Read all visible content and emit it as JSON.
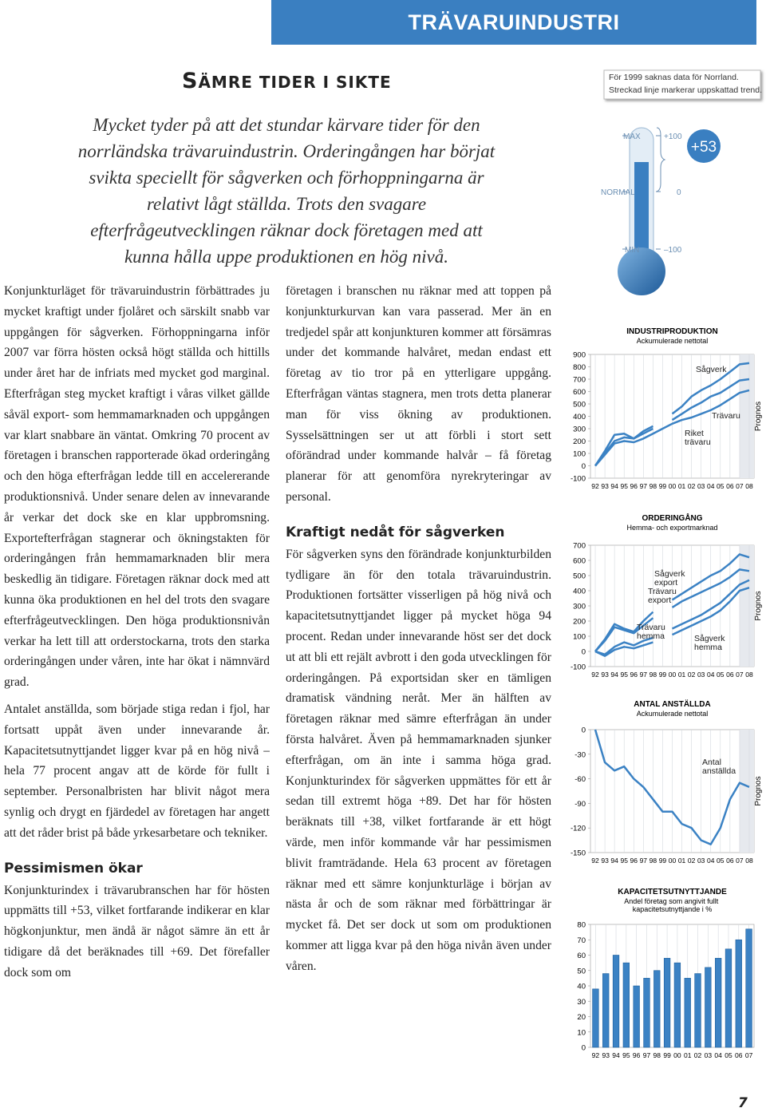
{
  "header": {
    "banner": "TRÄVARUINDUSTRI"
  },
  "article": {
    "title": "SÄMRE TIDER I SIKTE",
    "lead": "Mycket tyder på att det stundar kärvare tider för den norrländska trävaruindustrin. Orderingången har börjat svikta speciellt för sågverken och förhoppningarna är relativt lågt ställda. Trots den svagare efterfrågeutvecklingen räknar dock företagen med att kunna hålla uppe produktionen en hög nivå.",
    "left": [
      {
        "text": "Konjunkturläget för trävaruindustrin förbättrades ju mycket kraftigt under fjolåret och särskilt snabb var uppgången för sågverken. Förhoppningarna inför 2007 var förra hösten också högt ställda och hittills under året har de infriats med mycket god marginal. Efterfrågan steg mycket kraftigt i våras vilket gällde såväl export- som hemmamarknaden och uppgången var klart snabbare än väntat. Omkring 70 procent av företagen i branschen rapporterade ökad orderingång och den höga efterfrågan ledde till en accelererande produktionsnivå. Under senare delen av innevarande år verkar det dock ske en klar uppbromsning. Exportefterfrågan stagnerar och ökningstakten för orderingången från hemmamarknaden blir mera beskedlig än tidigare. Företagen räknar dock med att kunna öka produktionen en hel del trots den svagare efterfrågeutvecklingen. Den höga produktionsnivån verkar ha lett till att orderstockarna, trots den starka orderingången under våren, inte har ökat i nämnvärd grad."
      },
      {
        "text": "Antalet anställda, som började stiga redan i fjol, har fortsatt uppåt även under innevarande år. Kapacitetsutnyttjandet ligger kvar på en hög nivå – hela 77 procent angav att de körde för fullt i september. Personalbristen har blivit något mera synlig och drygt en fjärdedel av företagen har angett att det råder brist på både yrkesarbetare och tekniker."
      },
      {
        "heading": "Pessimismen ökar"
      },
      {
        "text": "Konjunkturindex i trävarubranschen har för hösten uppmätts till +53, vilket fortfarande indikerar en klar högkonjunktur, men ändå är något sämre än ett år tidigare då det beräknades till +69. Det förefaller dock som om"
      }
    ],
    "middle": [
      {
        "text": "företagen i branschen nu räknar med att toppen på konjunkturkurvan kan vara passerad. Mer än en tredjedel spår att konjunkturen kommer att försämras under det kommande halvåret, medan endast ett företag av tio tror på en ytterligare uppgång. Efterfrågan väntas stagnera, men trots detta planerar man för viss ökning av produktionen. Sysselsättningen ser ut att förbli i stort sett oförändrad under kommande halvår – få företag planerar för att genomföra nyrekryteringar av personal."
      },
      {
        "heading": "Kraftigt nedåt för sågverken"
      },
      {
        "text": "För sågverken syns den förändrade konjunkturbilden tydligare än för den totala trävaruindustrin. Produktionen fortsätter visserligen på hög nivå och kapacitetsutnyttjandet ligger på mycket höga 94 procent. Redan under innevarande höst ser det dock ut att bli ett rejält avbrott i den goda utvecklingen för orderingången. På exportsidan sker en tämligen dramatisk vändning neråt. Mer än hälften av företagen räknar med sämre efterfrågan än under första halvåret. Även på hemmamarknaden sjunker efterfrågan, om än inte i samma höga grad. Konjunkturindex för sågverken uppmättes för ett år sedan till extremt höga +89. Det har för hösten beräknats till +38, vilket fortfarande är ett högt värde, men inför kommande vår har pessimismen blivit framträdande. Hela 63 procent av företagen räknar med ett sämre konjunkturläge i början av nästa år och de som räknar med förbättringar är mycket få. Det ser dock ut som om produktionen kommer att ligga kvar på den höga nivån även under våren."
      }
    ]
  },
  "gauge": {
    "note": [
      "För 1999 saknas data för Norrland.",
      "Streckad linje markerar uppskattad trend."
    ],
    "max": "MAX",
    "normal": "NORMAL",
    "min": "MIN",
    "top": "+100",
    "zero": "0",
    "bottom": "–100",
    "index": "+53"
  },
  "chart_data": [
    {
      "type": "line",
      "title": "INDUSTRIPRODUKTION",
      "subtitle": "Ackumulerade nettotal",
      "categories": [
        "92",
        "93",
        "94",
        "95",
        "96",
        "97",
        "98",
        "99",
        "00",
        "01",
        "02",
        "03",
        "04",
        "05",
        "06",
        "07",
        "08"
      ],
      "ylim": [
        -100,
        900
      ],
      "yticks": [
        -100,
        0,
        100,
        200,
        300,
        400,
        500,
        600,
        700,
        800,
        900
      ],
      "annotation": "Prognos",
      "series": [
        {
          "name": "Sågverk",
          "color": "#3b82c4",
          "values": [
            0,
            120,
            250,
            260,
            220,
            280,
            320,
            null,
            420,
            480,
            560,
            610,
            650,
            700,
            760,
            820,
            830
          ]
        },
        {
          "name": "Trävaru",
          "color": "#3b82c4",
          "values": [
            0,
            100,
            200,
            230,
            220,
            260,
            300,
            null,
            370,
            420,
            470,
            510,
            560,
            590,
            640,
            690,
            700
          ]
        },
        {
          "name": "Riket trävaru",
          "color": "#3b82c4",
          "values": [
            0,
            90,
            180,
            200,
            190,
            220,
            260,
            300,
            340,
            370,
            390,
            420,
            450,
            490,
            540,
            590,
            610
          ]
        }
      ]
    },
    {
      "type": "line",
      "title": "ORDERINGÅNG",
      "subtitle": "Hemma- och exportmarknad",
      "categories": [
        "92",
        "93",
        "94",
        "95",
        "96",
        "97",
        "98",
        "99",
        "00",
        "01",
        "02",
        "03",
        "04",
        "05",
        "06",
        "07",
        "08"
      ],
      "ylim": [
        -100,
        700
      ],
      "yticks": [
        -100,
        0,
        100,
        200,
        300,
        400,
        500,
        600,
        700
      ],
      "annotation": "Prognos",
      "series": [
        {
          "name": "Sågverk export",
          "color": "#3b82c4",
          "values": [
            0,
            80,
            180,
            150,
            130,
            200,
            260,
            null,
            340,
            380,
            420,
            460,
            500,
            530,
            580,
            640,
            620
          ]
        },
        {
          "name": "Trävaru export",
          "color": "#3b82c4",
          "values": [
            0,
            70,
            160,
            140,
            120,
            170,
            220,
            null,
            290,
            330,
            360,
            390,
            420,
            450,
            490,
            540,
            530
          ]
        },
        {
          "name": "Trävaru hemma",
          "color": "#3b82c4",
          "values": [
            0,
            -20,
            30,
            60,
            40,
            70,
            90,
            null,
            150,
            180,
            210,
            240,
            280,
            320,
            380,
            440,
            470
          ]
        },
        {
          "name": "Sågverk hemma",
          "color": "#3b82c4",
          "values": [
            0,
            -30,
            10,
            30,
            20,
            40,
            60,
            null,
            110,
            140,
            170,
            200,
            230,
            270,
            330,
            400,
            420
          ]
        }
      ]
    },
    {
      "type": "line",
      "title": "ANTAL ANSTÄLLDA",
      "subtitle": "Ackumulerade nettotal",
      "categories": [
        "92",
        "93",
        "94",
        "95",
        "96",
        "97",
        "98",
        "99",
        "00",
        "01",
        "02",
        "03",
        "04",
        "05",
        "06",
        "07",
        "08"
      ],
      "ylim": [
        -150,
        0
      ],
      "yticks": [
        -150,
        -120,
        -90,
        -60,
        -30,
        0
      ],
      "annotation": "Prognos",
      "series": [
        {
          "name": "Antal anställda",
          "color": "#3b82c4",
          "values": [
            0,
            -40,
            -50,
            -45,
            -60,
            -70,
            -85,
            -100,
            -100,
            -115,
            -120,
            -135,
            -140,
            -120,
            -85,
            -65,
            -70
          ]
        }
      ]
    },
    {
      "type": "bar",
      "title": "KAPACITETSUTNYTTJANDE",
      "subtitle": "Andel företag som angivit fullt kapacitetsutnyttjande i %",
      "categories": [
        "92",
        "93",
        "94",
        "95",
        "96",
        "97",
        "98",
        "99",
        "00",
        "01",
        "02",
        "03",
        "04",
        "05",
        "06",
        "07"
      ],
      "ylim": [
        0,
        80
      ],
      "yticks": [
        0,
        10,
        20,
        30,
        40,
        50,
        60,
        70,
        80
      ],
      "color": "#3b82c4",
      "values": [
        38,
        48,
        60,
        55,
        40,
        45,
        50,
        58,
        55,
        45,
        48,
        52,
        58,
        64,
        70,
        77
      ]
    }
  ],
  "footer": {
    "page": "7"
  }
}
